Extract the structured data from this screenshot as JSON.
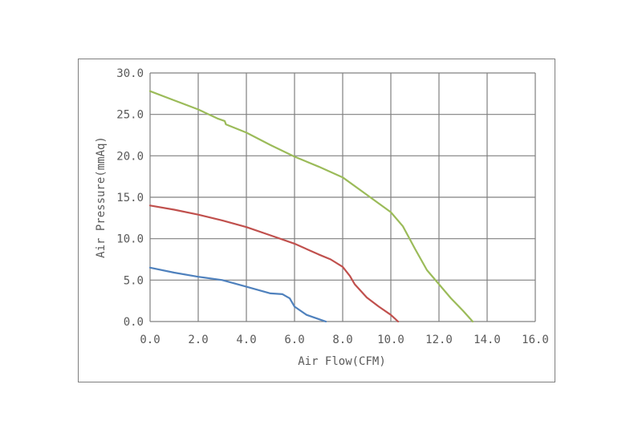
{
  "chart_data": {
    "type": "line",
    "title": "",
    "xlabel": "Air Flow(CFM)",
    "ylabel": "Air Pressure(mmAq)",
    "xlim": [
      0,
      16
    ],
    "ylim": [
      0,
      30
    ],
    "x_ticks": [
      "0.0",
      "2.0",
      "4.0",
      "6.0",
      "8.0",
      "10.0",
      "12.0",
      "14.0",
      "16.0"
    ],
    "y_ticks": [
      "0.0",
      "5.0",
      "10.0",
      "15.0",
      "20.0",
      "25.0",
      "30.0"
    ],
    "x_tick_values": [
      0,
      2,
      4,
      6,
      8,
      10,
      12,
      14,
      16
    ],
    "y_tick_values": [
      0,
      5,
      10,
      15,
      20,
      25,
      30
    ],
    "grid": true,
    "legend": "none",
    "series": [
      {
        "color": "#9bbb59",
        "points": [
          [
            0,
            27.8
          ],
          [
            1,
            26.7
          ],
          [
            2,
            25.6
          ],
          [
            2.8,
            24.5
          ],
          [
            3.1,
            24.2
          ],
          [
            3.15,
            23.8
          ],
          [
            4,
            22.8
          ],
          [
            5,
            21.3
          ],
          [
            6,
            19.9
          ],
          [
            7,
            18.7
          ],
          [
            8,
            17.4
          ],
          [
            9,
            15.3
          ],
          [
            10,
            13.2
          ],
          [
            10.5,
            11.5
          ],
          [
            11,
            8.8
          ],
          [
            11.5,
            6.2
          ],
          [
            12,
            4.5
          ],
          [
            12.5,
            2.8
          ],
          [
            13,
            1.3
          ],
          [
            13.4,
            0
          ]
        ]
      },
      {
        "color": "#c0504d",
        "points": [
          [
            0,
            14.0
          ],
          [
            1,
            13.5
          ],
          [
            2,
            12.9
          ],
          [
            3,
            12.2
          ],
          [
            4,
            11.4
          ],
          [
            5,
            10.4
          ],
          [
            6,
            9.4
          ],
          [
            7,
            8.1
          ],
          [
            7.5,
            7.5
          ],
          [
            8,
            6.6
          ],
          [
            8.3,
            5.5
          ],
          [
            8.5,
            4.5
          ],
          [
            9,
            2.9
          ],
          [
            9.5,
            1.8
          ],
          [
            10,
            0.8
          ],
          [
            10.3,
            0
          ]
        ]
      },
      {
        "color": "#4f81bd",
        "points": [
          [
            0,
            6.5
          ],
          [
            1,
            5.9
          ],
          [
            2,
            5.4
          ],
          [
            3,
            5.0
          ],
          [
            4,
            4.2
          ],
          [
            5,
            3.4
          ],
          [
            5.5,
            3.3
          ],
          [
            5.8,
            2.8
          ],
          [
            6,
            1.8
          ],
          [
            6.5,
            0.8
          ],
          [
            7,
            0.3
          ],
          [
            7.3,
            0
          ]
        ]
      }
    ]
  }
}
